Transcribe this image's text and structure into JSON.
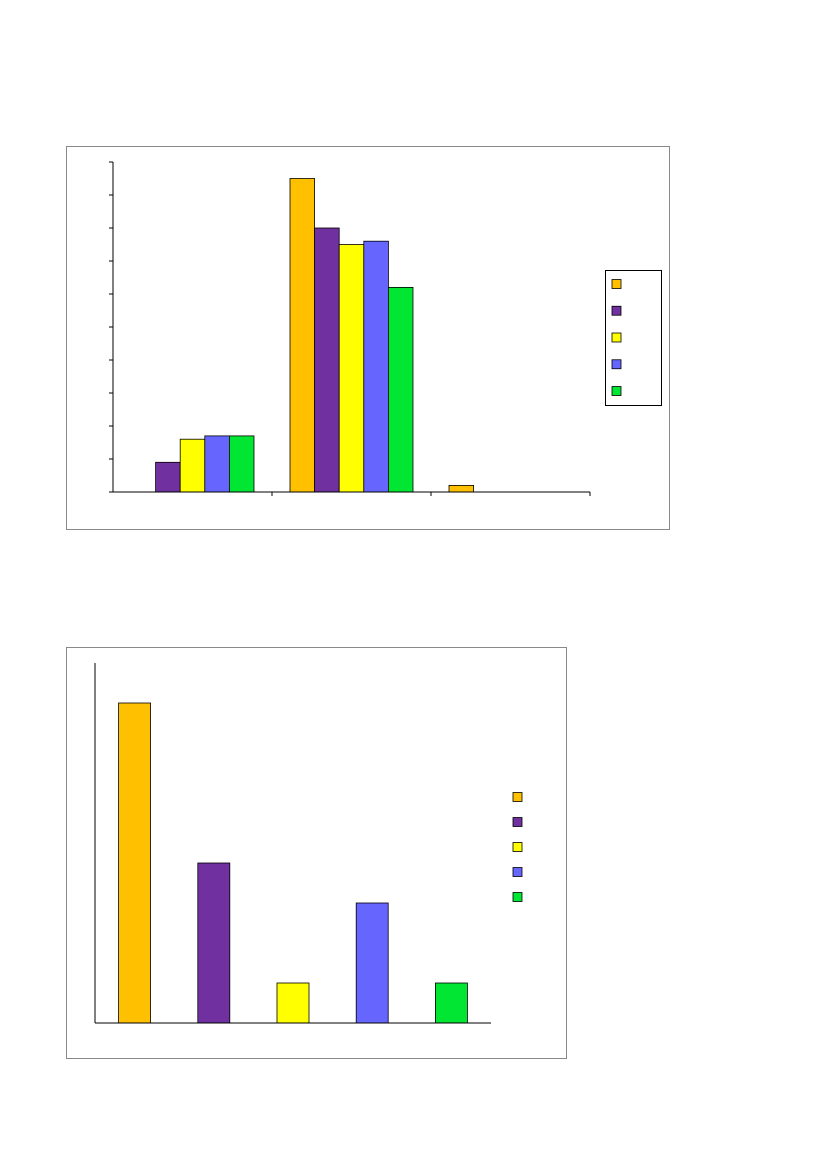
{
  "chart_data": [
    {
      "type": "bar",
      "categories": [
        null,
        null,
        null
      ],
      "series": [
        {
          "color": "#ffc000",
          "values": [
            0,
            9.5,
            0.2
          ]
        },
        {
          "color": "#7030a0",
          "values": [
            0.9,
            8.0,
            0
          ]
        },
        {
          "color": "#ffff00",
          "values": [
            1.6,
            7.5,
            0
          ]
        },
        {
          "color": "#6666ff",
          "values": [
            1.7,
            7.6,
            0
          ]
        },
        {
          "color": "#00e633",
          "values": [
            1.7,
            6.2,
            0
          ]
        }
      ],
      "ylim": [
        0,
        10
      ],
      "yticks": [
        0,
        1,
        2,
        3,
        4,
        5,
        6,
        7,
        8,
        9,
        10
      ],
      "legend": "right"
    },
    {
      "type": "bar",
      "categories": [
        null,
        null,
        null,
        null,
        null
      ],
      "values": [
        8,
        4,
        1,
        3,
        1
      ],
      "colors": [
        "#ffc000",
        "#7030a0",
        "#ffff00",
        "#6666ff",
        "#00e633"
      ],
      "ylim": [
        0,
        9
      ],
      "legend": "right"
    }
  ]
}
